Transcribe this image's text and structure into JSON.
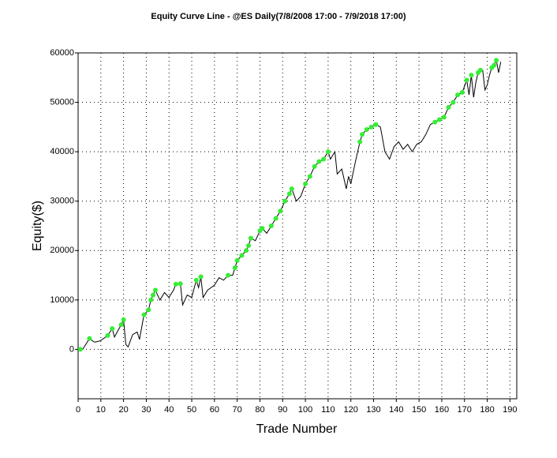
{
  "chart_data": {
    "type": "line",
    "title": "Equity Curve Line - @ES Daily(7/8/2008 17:00 - 7/9/2018 17:00)",
    "x_label": "Trade Number",
    "y_label": "Equity($)",
    "x": [
      1,
      2,
      5,
      7,
      8,
      10,
      13,
      15,
      16,
      19,
      20,
      21,
      22,
      24,
      26,
      27,
      29,
      31,
      32,
      33,
      34,
      36,
      38,
      40,
      42,
      43,
      45,
      46,
      48,
      50,
      52,
      53,
      54,
      55,
      57,
      60,
      62,
      64,
      66,
      68,
      69,
      70,
      72,
      74,
      75,
      76,
      78,
      80,
      81,
      83,
      85,
      87,
      89,
      91,
      93,
      94,
      96,
      98,
      100,
      102,
      104,
      106,
      108,
      110,
      111,
      113,
      114,
      116,
      118,
      119,
      120,
      122,
      124,
      125,
      127,
      129,
      131,
      133,
      135,
      137,
      139,
      141,
      143,
      145,
      147,
      149,
      151,
      153,
      155,
      157,
      159,
      161,
      163,
      165,
      167,
      169,
      171,
      172,
      173,
      174,
      175,
      176,
      177,
      178,
      179,
      180,
      181,
      182,
      183,
      184,
      185,
      186
    ],
    "values": [
      0,
      0,
      2200,
      1500,
      1500,
      1800,
      2800,
      4200,
      2500,
      5000,
      6000,
      1000,
      500,
      3000,
      3500,
      2000,
      7000,
      8000,
      10000,
      11000,
      12000,
      10000,
      11500,
      10500,
      12000,
      13200,
      13300,
      9000,
      11000,
      10500,
      14000,
      12500,
      14700,
      10500,
      12000,
      13000,
      14500,
      14000,
      15000,
      15000,
      16500,
      18000,
      19000,
      20000,
      21000,
      22500,
      22000,
      24000,
      24500,
      23500,
      25000,
      26500,
      28000,
      30000,
      31500,
      32500,
      30000,
      31000,
      33500,
      35000,
      37000,
      38000,
      38500,
      40000,
      38500,
      40000,
      35500,
      36500,
      32500,
      35000,
      33500,
      38000,
      42000,
      43500,
      44500,
      45000,
      45500,
      45000,
      40000,
      38500,
      41000,
      42000,
      40500,
      41500,
      40000,
      41500,
      42000,
      43500,
      45500,
      46000,
      46500,
      47000,
      49000,
      50000,
      51500,
      52000,
      54500,
      51500,
      55500,
      51000,
      54000,
      56000,
      56500,
      56500,
      52500,
      53500,
      55500,
      57000,
      57500,
      58500,
      56000,
      58200
    ],
    "color": "#000000",
    "new_high_marker_color": "#33ee33",
    "xlim": [
      0,
      193
    ],
    "ylim": [
      -10000,
      60000
    ],
    "xticks": [
      0,
      10,
      20,
      30,
      40,
      50,
      60,
      70,
      80,
      90,
      100,
      110,
      120,
      130,
      140,
      150,
      160,
      170,
      180,
      190
    ],
    "yticks": [
      0,
      10000,
      20000,
      30000,
      40000,
      50000,
      60000
    ],
    "grid": true
  }
}
